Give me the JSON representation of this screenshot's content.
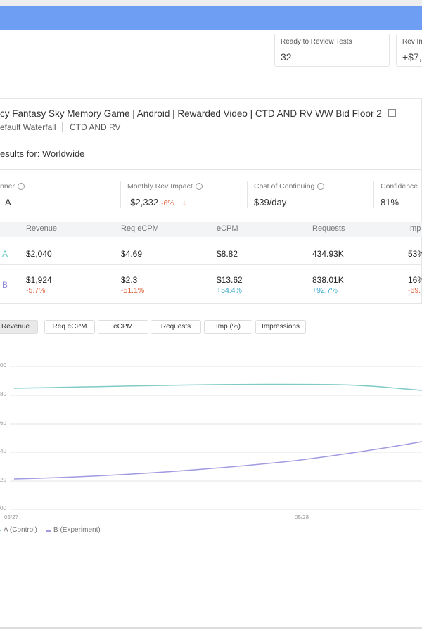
{
  "header": {
    "cards": [
      {
        "label": "Ready to Review Tests",
        "value": "32"
      },
      {
        "label": "Rev Im",
        "value": "+$7,"
      }
    ]
  },
  "test": {
    "title": "cy  Fantasy Sky Memory Game | Android | Rewarded Video | CTD AND RV WW Bid Floor 2",
    "waterfall": "efault Waterfall",
    "tag": "CTD AND RV",
    "results": "esults for: Worldwide"
  },
  "metrics": [
    {
      "label": "nner",
      "value": "A"
    },
    {
      "label": "Monthly Rev Impact",
      "value": "-$2,332",
      "change": "-6%"
    },
    {
      "label": "Cost of Continuing",
      "value": "$39/day"
    },
    {
      "label": "Confidence",
      "value": "81%"
    }
  ],
  "table": {
    "columns": [
      "Revenue",
      "Req eCPM",
      "eCPM",
      "Requests",
      "Imp"
    ],
    "rows": [
      {
        "variant": "A",
        "cells": [
          "$2,040",
          "$4.69",
          "$8.82",
          "434.93K",
          "53%"
        ]
      },
      {
        "variant": "B",
        "cells": [
          "$1,924",
          "$2.3",
          "$13.62",
          "838.01K",
          "16%"
        ],
        "changes": [
          "-5.7%",
          "-51.1%",
          "+54.4%",
          "+92.7%",
          "-69."
        ]
      }
    ]
  },
  "tabs": [
    "Revenue",
    "Req eCPM",
    "eCPM",
    "Requests",
    "Imp (%)",
    "Impressions"
  ],
  "chart": {
    "y_labels": [
      "00",
      "80",
      "60",
      "40",
      "20",
      "00"
    ],
    "x_labels": [
      "05/27",
      "05/28"
    ],
    "legend": [
      "A (Control)",
      "B (Experiment)"
    ]
  }
}
